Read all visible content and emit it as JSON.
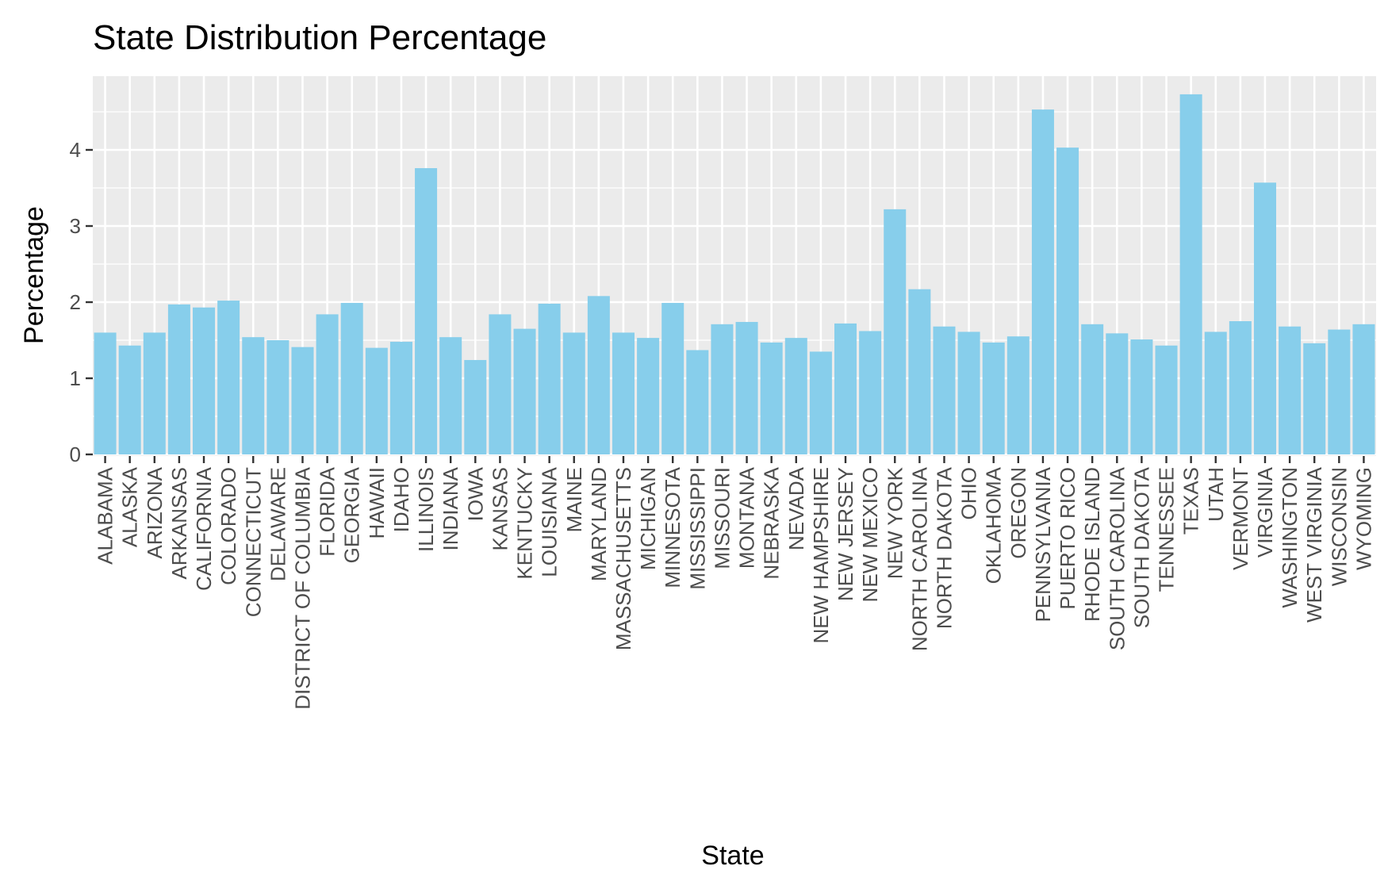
{
  "chart_data": {
    "type": "bar",
    "title": "State Distribution Percentage",
    "xlabel": "State",
    "ylabel": "Percentage",
    "ylim": [
      0,
      4.95
    ],
    "yticks": [
      0,
      1,
      2,
      3,
      4
    ],
    "grid": true,
    "colors": {
      "bar": "#87ceeb",
      "panel": "#ebebeb",
      "grid": "#ffffff",
      "tick": "#333333"
    },
    "categories": [
      "ALABAMA",
      "ALASKA",
      "ARIZONA",
      "ARKANSAS",
      "CALIFORNIA",
      "COLORADO",
      "CONNECTICUT",
      "DELAWARE",
      "DISTRICT OF COLUMBIA",
      "FLORIDA",
      "GEORGIA",
      "HAWAII",
      "IDAHO",
      "ILLINOIS",
      "INDIANA",
      "IOWA",
      "KANSAS",
      "KENTUCKY",
      "LOUISIANA",
      "MAINE",
      "MARYLAND",
      "MASSACHUSETTS",
      "MICHIGAN",
      "MINNESOTA",
      "MISSISSIPPI",
      "MISSOURI",
      "MONTANA",
      "NEBRASKA",
      "NEVADA",
      "NEW HAMPSHIRE",
      "NEW JERSEY",
      "NEW MEXICO",
      "NEW YORK",
      "NORTH CAROLINA",
      "NORTH DAKOTA",
      "OHIO",
      "OKLAHOMA",
      "OREGON",
      "PENNSYLVANIA",
      "PUERTO RICO",
      "RHODE ISLAND",
      "SOUTH CAROLINA",
      "SOUTH DAKOTA",
      "TENNESSEE",
      "TEXAS",
      "UTAH",
      "VERMONT",
      "VIRGINIA",
      "WASHINGTON",
      "WEST VIRGINIA",
      "WISCONSIN",
      "WYOMING"
    ],
    "values": [
      1.6,
      1.43,
      1.6,
      1.97,
      1.93,
      2.02,
      1.54,
      1.5,
      1.41,
      1.84,
      1.99,
      1.4,
      1.48,
      3.76,
      1.54,
      1.24,
      1.84,
      1.65,
      1.98,
      1.6,
      2.08,
      1.6,
      1.53,
      1.99,
      1.37,
      1.71,
      1.74,
      1.47,
      1.53,
      1.35,
      1.72,
      1.62,
      3.22,
      2.17,
      1.68,
      1.61,
      1.47,
      1.55,
      4.53,
      4.03,
      1.71,
      1.59,
      1.51,
      1.43,
      4.73,
      1.61,
      1.75,
      3.57,
      1.68,
      1.46,
      1.64,
      1.71
    ]
  }
}
